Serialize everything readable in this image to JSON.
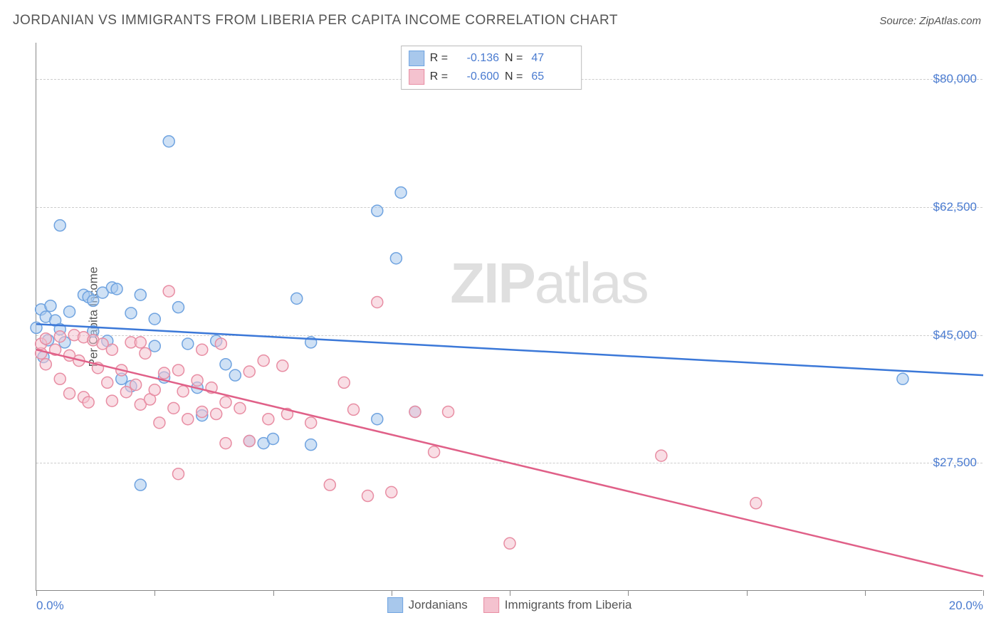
{
  "header": {
    "title": "JORDANIAN VS IMMIGRANTS FROM LIBERIA PER CAPITA INCOME CORRELATION CHART",
    "source_prefix": "Source: ",
    "source_name": "ZipAtlas.com"
  },
  "chart": {
    "type": "scatter",
    "y_axis_label": "Per Capita Income",
    "xlim": [
      0,
      20
    ],
    "ylim": [
      10000,
      85000
    ],
    "x_ticks": [
      0,
      2.5,
      5,
      7.5,
      10,
      12.5,
      15,
      17.5,
      20
    ],
    "x_tick_labels_shown": {
      "0": "0.0%",
      "20": "20.0%"
    },
    "y_gridlines": [
      27500,
      45000,
      62500,
      80000
    ],
    "y_tick_labels": [
      "$27,500",
      "$45,000",
      "$62,500",
      "$80,000"
    ],
    "background_color": "#ffffff",
    "grid_color": "#cccccc",
    "axis_color": "#888888",
    "tick_label_color": "#4a7bd0",
    "marker_radius": 8,
    "marker_opacity": 0.55,
    "line_width": 2.5,
    "series": [
      {
        "name": "Jordanians",
        "color_fill": "#a8c8ec",
        "color_stroke": "#6fa3e0",
        "line_color": "#3b78d8",
        "R": "-0.136",
        "N": "47",
        "regression": {
          "x1": 0,
          "y1": 46500,
          "x2": 20,
          "y2": 39500
        },
        "points": [
          [
            0.0,
            46000
          ],
          [
            0.1,
            48500
          ],
          [
            0.15,
            42000
          ],
          [
            0.2,
            47500
          ],
          [
            0.25,
            44300
          ],
          [
            0.3,
            49000
          ],
          [
            0.4,
            47000
          ],
          [
            0.5,
            45800
          ],
          [
            0.6,
            44000
          ],
          [
            0.7,
            48200
          ],
          [
            0.5,
            60000
          ],
          [
            1.0,
            50500
          ],
          [
            1.1,
            50200
          ],
          [
            1.2,
            45500
          ],
          [
            1.2,
            49700
          ],
          [
            1.4,
            50800
          ],
          [
            1.5,
            44200
          ],
          [
            1.6,
            51500
          ],
          [
            1.7,
            51300
          ],
          [
            1.8,
            39000
          ],
          [
            2.0,
            48000
          ],
          [
            2.0,
            38000
          ],
          [
            2.2,
            50500
          ],
          [
            2.2,
            24500
          ],
          [
            2.5,
            43500
          ],
          [
            2.5,
            47200
          ],
          [
            2.7,
            39200
          ],
          [
            2.8,
            71500
          ],
          [
            3.0,
            48800
          ],
          [
            3.2,
            43800
          ],
          [
            3.4,
            37800
          ],
          [
            3.5,
            34000
          ],
          [
            3.8,
            44200
          ],
          [
            4.0,
            41000
          ],
          [
            4.2,
            39500
          ],
          [
            4.5,
            30500
          ],
          [
            4.8,
            30200
          ],
          [
            5.0,
            30800
          ],
          [
            5.5,
            50000
          ],
          [
            5.8,
            44000
          ],
          [
            5.8,
            30000
          ],
          [
            7.2,
            62000
          ],
          [
            7.2,
            33500
          ],
          [
            7.6,
            55500
          ],
          [
            7.7,
            64500
          ],
          [
            8.0,
            34500
          ],
          [
            18.3,
            39000
          ]
        ]
      },
      {
        "name": "Immigrants from Liberia",
        "color_fill": "#f4c2cf",
        "color_stroke": "#e88da3",
        "line_color": "#e06088",
        "R": "-0.600",
        "N": "65",
        "regression": {
          "x1": 0,
          "y1": 43000,
          "x2": 20,
          "y2": 12000
        },
        "points": [
          [
            0.1,
            42500
          ],
          [
            0.1,
            43800
          ],
          [
            0.2,
            41000
          ],
          [
            0.2,
            44500
          ],
          [
            0.4,
            43000
          ],
          [
            0.5,
            39000
          ],
          [
            0.5,
            44800
          ],
          [
            0.7,
            42200
          ],
          [
            0.7,
            37000
          ],
          [
            0.8,
            45000
          ],
          [
            0.9,
            41500
          ],
          [
            1.0,
            36500
          ],
          [
            1.0,
            44700
          ],
          [
            1.1,
            35800
          ],
          [
            1.2,
            44300
          ],
          [
            1.3,
            40500
          ],
          [
            1.4,
            43800
          ],
          [
            1.5,
            38500
          ],
          [
            1.6,
            43000
          ],
          [
            1.6,
            36000
          ],
          [
            1.8,
            40200
          ],
          [
            1.9,
            37200
          ],
          [
            2.0,
            44000
          ],
          [
            2.1,
            38200
          ],
          [
            2.2,
            35500
          ],
          [
            2.2,
            44000
          ],
          [
            2.3,
            42500
          ],
          [
            2.4,
            36200
          ],
          [
            2.5,
            37500
          ],
          [
            2.6,
            33000
          ],
          [
            2.7,
            39800
          ],
          [
            2.8,
            51000
          ],
          [
            2.9,
            35000
          ],
          [
            3.0,
            40200
          ],
          [
            3.0,
            26000
          ],
          [
            3.1,
            37300
          ],
          [
            3.2,
            33500
          ],
          [
            3.4,
            38800
          ],
          [
            3.5,
            43000
          ],
          [
            3.5,
            34500
          ],
          [
            3.7,
            37800
          ],
          [
            3.8,
            34200
          ],
          [
            3.9,
            43800
          ],
          [
            4.0,
            35800
          ],
          [
            4.0,
            30200
          ],
          [
            4.3,
            35000
          ],
          [
            4.5,
            40000
          ],
          [
            4.5,
            30500
          ],
          [
            4.8,
            41500
          ],
          [
            4.9,
            33500
          ],
          [
            5.2,
            40800
          ],
          [
            5.3,
            34200
          ],
          [
            5.8,
            33000
          ],
          [
            6.2,
            24500
          ],
          [
            6.5,
            38500
          ],
          [
            6.7,
            34800
          ],
          [
            7.0,
            23000
          ],
          [
            7.2,
            49500
          ],
          [
            7.5,
            23500
          ],
          [
            8.0,
            34500
          ],
          [
            8.4,
            29000
          ],
          [
            8.7,
            34500
          ],
          [
            10.0,
            16500
          ],
          [
            13.2,
            28500
          ],
          [
            15.2,
            22000
          ]
        ]
      }
    ],
    "legend_top": {
      "R_label": "R =",
      "N_label": "N ="
    },
    "legend_bottom": [
      {
        "swatch_fill": "#a8c8ec",
        "swatch_stroke": "#6fa3e0",
        "label": "Jordanians"
      },
      {
        "swatch_fill": "#f4c2cf",
        "swatch_stroke": "#e88da3",
        "label": "Immigrants from Liberia"
      }
    ],
    "watermark": {
      "bold": "ZIP",
      "light": "atlas"
    }
  }
}
